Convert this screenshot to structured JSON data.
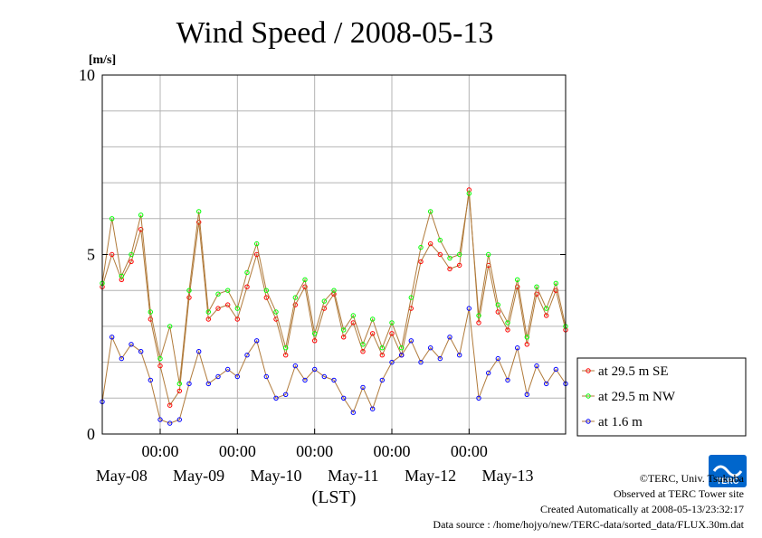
{
  "chart_data": {
    "type": "line",
    "title": "Wind Speed / 2008-05-13",
    "unit_label": "[m/s]",
    "xlabel": "(LST)",
    "ylabel": "",
    "ylim": [
      0,
      10
    ],
    "y_ticks": [
      "0",
      "5",
      "10"
    ],
    "xlim": [
      "2008-05-07T06:00",
      "2008-05-13T06:00"
    ],
    "x_time_ticks": [
      {
        "time": "2008-05-08T00:00",
        "label": "00:00"
      },
      {
        "time": "2008-05-09T00:00",
        "label": "00:00"
      },
      {
        "time": "2008-05-10T00:00",
        "label": "00:00"
      },
      {
        "time": "2008-05-11T00:00",
        "label": "00:00"
      },
      {
        "time": "2008-05-12T00:00",
        "label": "00:00"
      }
    ],
    "x_day_labels": [
      {
        "time": "2008-05-07T12:00",
        "label": "May-08"
      },
      {
        "time": "2008-05-08T12:00",
        "label": "May-09"
      },
      {
        "time": "2008-05-09T12:00",
        "label": "May-10"
      },
      {
        "time": "2008-05-10T12:00",
        "label": "May-11"
      },
      {
        "time": "2008-05-11T12:00",
        "label": "May-12"
      },
      {
        "time": "2008-05-12T12:00",
        "label": "May-13"
      }
    ],
    "grid": true,
    "legend_position": "right",
    "series": [
      {
        "name": "at 29.5 m SE",
        "color": "#ff0000",
        "points": [
          [
            "2008-05-07T06:00",
            4.1
          ],
          [
            "2008-05-07T09:00",
            5.0
          ],
          [
            "2008-05-07T12:00",
            4.3
          ],
          [
            "2008-05-07T15:00",
            4.8
          ],
          [
            "2008-05-07T18:00",
            5.7
          ],
          [
            "2008-05-07T21:00",
            3.2
          ],
          [
            "2008-05-08T00:00",
            1.9
          ],
          [
            "2008-05-08T03:00",
            0.8
          ],
          [
            "2008-05-08T06:00",
            1.2
          ],
          [
            "2008-05-08T09:00",
            3.8
          ],
          [
            "2008-05-08T12:00",
            5.9
          ],
          [
            "2008-05-08T15:00",
            3.2
          ],
          [
            "2008-05-08T18:00",
            3.5
          ],
          [
            "2008-05-08T21:00",
            3.6
          ],
          [
            "2008-05-09T00:00",
            3.2
          ],
          [
            "2008-05-09T03:00",
            4.1
          ],
          [
            "2008-05-09T06:00",
            5.0
          ],
          [
            "2008-05-09T09:00",
            3.8
          ],
          [
            "2008-05-09T12:00",
            3.2
          ],
          [
            "2008-05-09T15:00",
            2.2
          ],
          [
            "2008-05-09T18:00",
            3.6
          ],
          [
            "2008-05-09T21:00",
            4.1
          ],
          [
            "2008-05-10T00:00",
            2.6
          ],
          [
            "2008-05-10T03:00",
            3.5
          ],
          [
            "2008-05-10T06:00",
            3.9
          ],
          [
            "2008-05-10T09:00",
            2.7
          ],
          [
            "2008-05-10T12:00",
            3.1
          ],
          [
            "2008-05-10T15:00",
            2.3
          ],
          [
            "2008-05-10T18:00",
            2.8
          ],
          [
            "2008-05-10T21:00",
            2.2
          ],
          [
            "2008-05-11T00:00",
            2.8
          ],
          [
            "2008-05-11T03:00",
            2.2
          ],
          [
            "2008-05-11T06:00",
            3.5
          ],
          [
            "2008-05-11T09:00",
            4.8
          ],
          [
            "2008-05-11T12:00",
            5.3
          ],
          [
            "2008-05-11T15:00",
            5.0
          ],
          [
            "2008-05-11T18:00",
            4.6
          ],
          [
            "2008-05-11T21:00",
            4.7
          ],
          [
            "2008-05-12T00:00",
            6.8
          ],
          [
            "2008-05-12T03:00",
            3.1
          ],
          [
            "2008-05-12T06:00",
            4.7
          ],
          [
            "2008-05-12T09:00",
            3.4
          ],
          [
            "2008-05-12T12:00",
            2.9
          ],
          [
            "2008-05-12T15:00",
            4.1
          ],
          [
            "2008-05-12T18:00",
            2.5
          ],
          [
            "2008-05-12T21:00",
            3.9
          ],
          [
            "2008-05-13T00:00",
            3.3
          ],
          [
            "2008-05-13T03:00",
            4.0
          ],
          [
            "2008-05-13T06:00",
            2.9
          ]
        ]
      },
      {
        "name": "at 29.5 m NW",
        "color": "#00ff00",
        "points": [
          [
            "2008-05-07T06:00",
            4.2
          ],
          [
            "2008-05-07T09:00",
            6.0
          ],
          [
            "2008-05-07T12:00",
            4.4
          ],
          [
            "2008-05-07T15:00",
            5.0
          ],
          [
            "2008-05-07T18:00",
            6.1
          ],
          [
            "2008-05-07T21:00",
            3.4
          ],
          [
            "2008-05-08T00:00",
            2.1
          ],
          [
            "2008-05-08T03:00",
            3.0
          ],
          [
            "2008-05-08T06:00",
            1.4
          ],
          [
            "2008-05-08T09:00",
            4.0
          ],
          [
            "2008-05-08T12:00",
            6.2
          ],
          [
            "2008-05-08T15:00",
            3.4
          ],
          [
            "2008-05-08T18:00",
            3.9
          ],
          [
            "2008-05-08T21:00",
            4.0
          ],
          [
            "2008-05-09T00:00",
            3.5
          ],
          [
            "2008-05-09T03:00",
            4.5
          ],
          [
            "2008-05-09T06:00",
            5.3
          ],
          [
            "2008-05-09T09:00",
            4.0
          ],
          [
            "2008-05-09T12:00",
            3.4
          ],
          [
            "2008-05-09T15:00",
            2.4
          ],
          [
            "2008-05-09T18:00",
            3.8
          ],
          [
            "2008-05-09T21:00",
            4.3
          ],
          [
            "2008-05-10T00:00",
            2.8
          ],
          [
            "2008-05-10T03:00",
            3.7
          ],
          [
            "2008-05-10T06:00",
            4.0
          ],
          [
            "2008-05-10T09:00",
            2.9
          ],
          [
            "2008-05-10T12:00",
            3.3
          ],
          [
            "2008-05-10T15:00",
            2.5
          ],
          [
            "2008-05-10T18:00",
            3.2
          ],
          [
            "2008-05-10T21:00",
            2.4
          ],
          [
            "2008-05-11T00:00",
            3.1
          ],
          [
            "2008-05-11T03:00",
            2.4
          ],
          [
            "2008-05-11T06:00",
            3.8
          ],
          [
            "2008-05-11T09:00",
            5.2
          ],
          [
            "2008-05-11T12:00",
            6.2
          ],
          [
            "2008-05-11T15:00",
            5.4
          ],
          [
            "2008-05-11T18:00",
            4.9
          ],
          [
            "2008-05-11T21:00",
            5.0
          ],
          [
            "2008-05-12T00:00",
            6.7
          ],
          [
            "2008-05-12T03:00",
            3.3
          ],
          [
            "2008-05-12T06:00",
            5.0
          ],
          [
            "2008-05-12T09:00",
            3.6
          ],
          [
            "2008-05-12T12:00",
            3.1
          ],
          [
            "2008-05-12T15:00",
            4.3
          ],
          [
            "2008-05-12T18:00",
            2.7
          ],
          [
            "2008-05-12T21:00",
            4.1
          ],
          [
            "2008-05-13T00:00",
            3.5
          ],
          [
            "2008-05-13T03:00",
            4.2
          ],
          [
            "2008-05-13T06:00",
            3.0
          ]
        ]
      },
      {
        "name": "at 1.6 m",
        "color": "#0000ff",
        "points": [
          [
            "2008-05-07T06:00",
            0.9
          ],
          [
            "2008-05-07T09:00",
            2.7
          ],
          [
            "2008-05-07T12:00",
            2.1
          ],
          [
            "2008-05-07T15:00",
            2.5
          ],
          [
            "2008-05-07T18:00",
            2.3
          ],
          [
            "2008-05-07T21:00",
            1.5
          ],
          [
            "2008-05-08T00:00",
            0.4
          ],
          [
            "2008-05-08T03:00",
            0.3
          ],
          [
            "2008-05-08T06:00",
            0.4
          ],
          [
            "2008-05-08T09:00",
            1.4
          ],
          [
            "2008-05-08T12:00",
            2.3
          ],
          [
            "2008-05-08T15:00",
            1.4
          ],
          [
            "2008-05-08T18:00",
            1.6
          ],
          [
            "2008-05-08T21:00",
            1.8
          ],
          [
            "2008-05-09T00:00",
            1.6
          ],
          [
            "2008-05-09T03:00",
            2.2
          ],
          [
            "2008-05-09T06:00",
            2.6
          ],
          [
            "2008-05-09T09:00",
            1.6
          ],
          [
            "2008-05-09T12:00",
            1.0
          ],
          [
            "2008-05-09T15:00",
            1.1
          ],
          [
            "2008-05-09T18:00",
            1.9
          ],
          [
            "2008-05-09T21:00",
            1.5
          ],
          [
            "2008-05-10T00:00",
            1.8
          ],
          [
            "2008-05-10T03:00",
            1.6
          ],
          [
            "2008-05-10T06:00",
            1.5
          ],
          [
            "2008-05-10T09:00",
            1.0
          ],
          [
            "2008-05-10T12:00",
            0.6
          ],
          [
            "2008-05-10T15:00",
            1.3
          ],
          [
            "2008-05-10T18:00",
            0.7
          ],
          [
            "2008-05-10T21:00",
            1.5
          ],
          [
            "2008-05-11T00:00",
            2.0
          ],
          [
            "2008-05-11T03:00",
            2.2
          ],
          [
            "2008-05-11T06:00",
            2.6
          ],
          [
            "2008-05-11T09:00",
            2.0
          ],
          [
            "2008-05-11T12:00",
            2.4
          ],
          [
            "2008-05-11T15:00",
            2.1
          ],
          [
            "2008-05-11T18:00",
            2.7
          ],
          [
            "2008-05-11T21:00",
            2.2
          ],
          [
            "2008-05-12T00:00",
            3.5
          ],
          [
            "2008-05-12T03:00",
            1.0
          ],
          [
            "2008-05-12T06:00",
            1.7
          ],
          [
            "2008-05-12T09:00",
            2.1
          ],
          [
            "2008-05-12T12:00",
            1.5
          ],
          [
            "2008-05-12T15:00",
            2.4
          ],
          [
            "2008-05-12T18:00",
            1.1
          ],
          [
            "2008-05-12T21:00",
            1.9
          ],
          [
            "2008-05-13T00:00",
            1.4
          ],
          [
            "2008-05-13T03:00",
            1.8
          ],
          [
            "2008-05-13T06:00",
            1.4
          ]
        ]
      }
    ]
  },
  "footer": {
    "copyright": "©TERC, Univ. Tsukuba",
    "observed": "Observed at TERC Tower site",
    "created": "Created Automatically at 2008-05-13/23:32:17",
    "source": "Data source : /home/hojyo/new/TERC-data/sorted_data/FLUX.30m.dat"
  },
  "logo": {
    "text": "TERC",
    "color": "#0066cc"
  }
}
